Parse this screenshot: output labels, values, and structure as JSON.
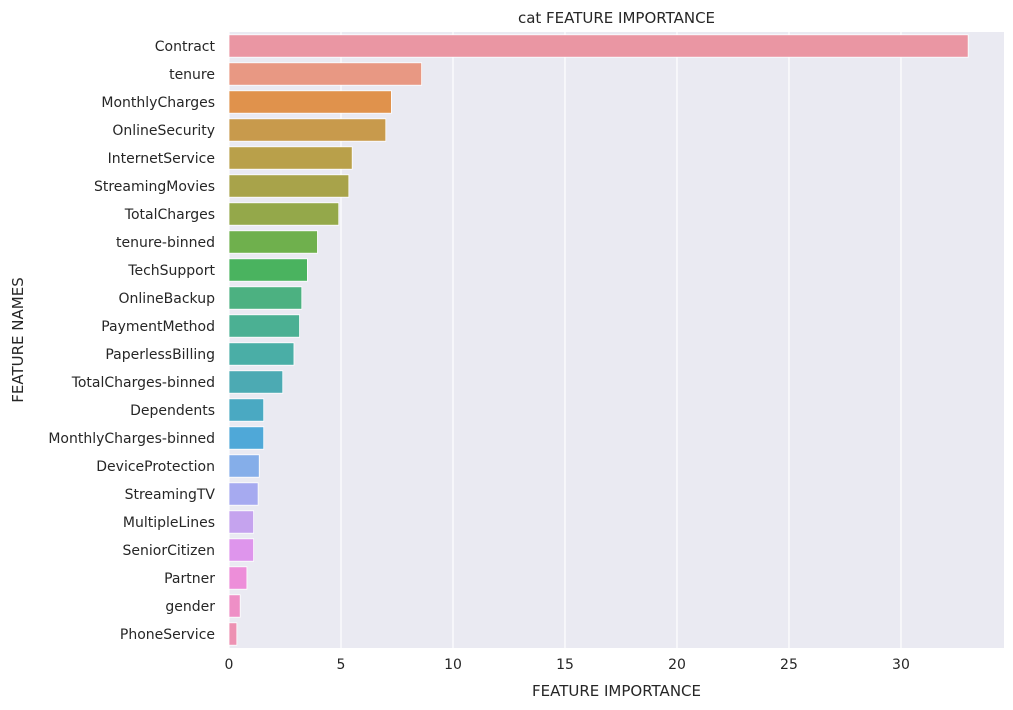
{
  "chart_data": {
    "type": "bar",
    "orientation": "horizontal",
    "title": "cat FEATURE IMPORTANCE",
    "xlabel": "FEATURE IMPORTANCE",
    "ylabel": "FEATURE NAMES",
    "xlim": [
      0,
      34.6
    ],
    "x_ticks": [
      0,
      5,
      10,
      15,
      20,
      25,
      30
    ],
    "grid": true,
    "categories": [
      "Contract",
      "tenure",
      "MonthlyCharges",
      "OnlineSecurity",
      "InternetService",
      "StreamingMovies",
      "TotalCharges",
      "tenure-binned",
      "TechSupport",
      "OnlineBackup",
      "PaymentMethod",
      "PaperlessBilling",
      "TotalCharges-binned",
      "Dependents",
      "MonthlyCharges-binned",
      "DeviceProtection",
      "StreamingTV",
      "MultipleLines",
      "SeniorCitizen",
      "Partner",
      "gender",
      "PhoneService"
    ],
    "values": [
      33.0,
      8.6,
      7.25,
      7.0,
      5.5,
      5.35,
      4.9,
      3.95,
      3.5,
      3.25,
      3.15,
      2.9,
      2.4,
      1.55,
      1.55,
      1.35,
      1.3,
      1.1,
      1.1,
      0.8,
      0.5,
      0.35
    ],
    "colors": [
      "#ea96a3",
      "#e89883",
      "#e0924c",
      "#c89a4c",
      "#b9a04a",
      "#a8a34a",
      "#94a84a",
      "#6fb04d",
      "#4ab35f",
      "#4cb181",
      "#4bb093",
      "#4aaea6",
      "#4caab3",
      "#4aa9c2",
      "#4fa8d8",
      "#85aee9",
      "#a6aaf0",
      "#c5a3ee",
      "#de95ec",
      "#ed8ed9",
      "#ee8fc6",
      "#ed92b3"
    ],
    "background": "#eaeaf2",
    "grid_color": "#ffffff"
  }
}
